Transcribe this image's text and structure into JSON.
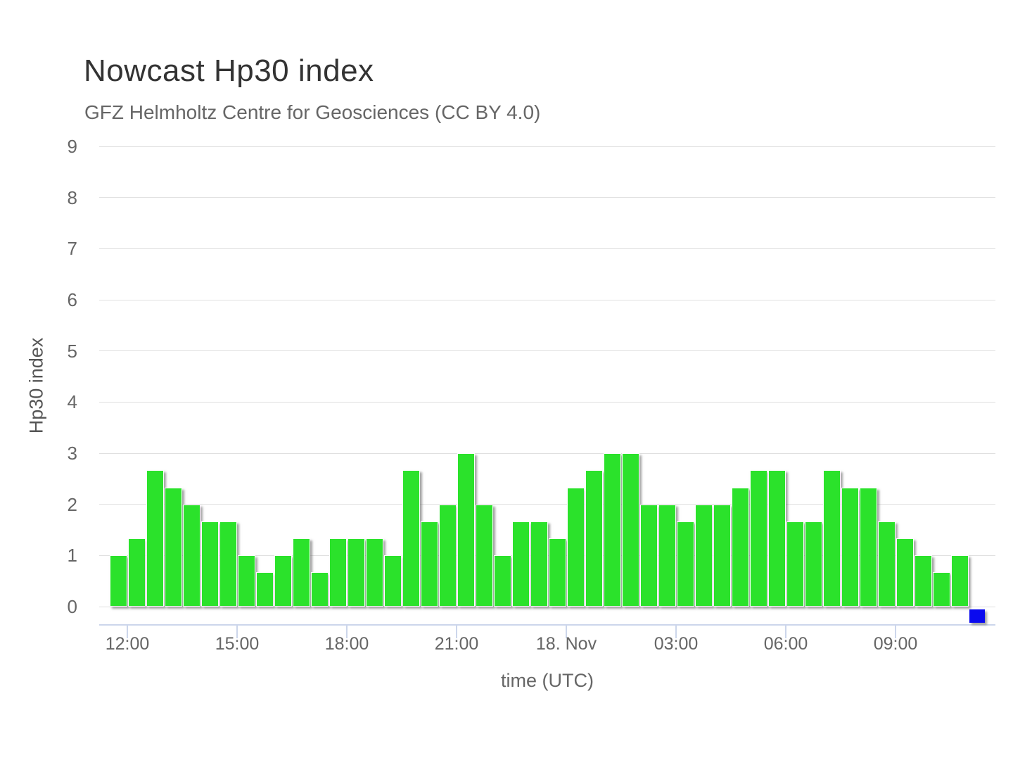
{
  "chart_data": {
    "type": "bar",
    "title": "Nowcast Hp30 index",
    "subtitle": "GFZ Helmholtz Centre for Geosciences (CC BY 4.0)",
    "xlabel": "time (UTC)",
    "ylabel": "Hp30 index",
    "ylim": [
      0,
      9
    ],
    "grid": true,
    "legend": "none",
    "yticks": [
      0,
      1,
      2,
      3,
      4,
      5,
      6,
      7,
      8,
      9
    ],
    "x_start_utc": "11:30",
    "x_step_minutes": 30,
    "xticks": [
      {
        "label": "12:00",
        "slot": 1
      },
      {
        "label": "15:00",
        "slot": 7
      },
      {
        "label": "18:00",
        "slot": 13
      },
      {
        "label": "21:00",
        "slot": 19
      },
      {
        "label": "18. Nov",
        "slot": 25
      },
      {
        "label": "03:00",
        "slot": 31
      },
      {
        "label": "06:00",
        "slot": 37
      },
      {
        "label": "09:00",
        "slot": 43
      }
    ],
    "series": [
      {
        "name": "Hp30",
        "color": "#2be22b",
        "values": [
          1,
          1.33,
          2.67,
          2.33,
          2,
          1.67,
          1.67,
          1,
          0.67,
          1,
          1.33,
          0.67,
          1.33,
          1.33,
          1.33,
          1,
          2.67,
          1.67,
          2,
          3,
          2,
          1,
          1.67,
          1.67,
          1.33,
          2.33,
          2.67,
          3,
          3,
          2,
          2,
          1.67,
          2,
          2,
          2.33,
          2.67,
          2.67,
          1.67,
          1.67,
          2.67,
          2.33,
          2.33,
          1.67,
          1.33,
          1,
          0.67,
          1
        ]
      }
    ],
    "current_interval_marker": {
      "slot": 47,
      "value": 0,
      "color": "#0a0aef"
    }
  },
  "colors": {
    "background": "#ffffff",
    "title": "#333333",
    "subtitle": "#666666",
    "axis_label": "#666666",
    "gridline": "#e0e0e0",
    "axis_line": "#ccd6eb",
    "bar_fill": "#2be22b",
    "bar_border": "#ffffff",
    "marker_blue": "#0a0aef"
  }
}
